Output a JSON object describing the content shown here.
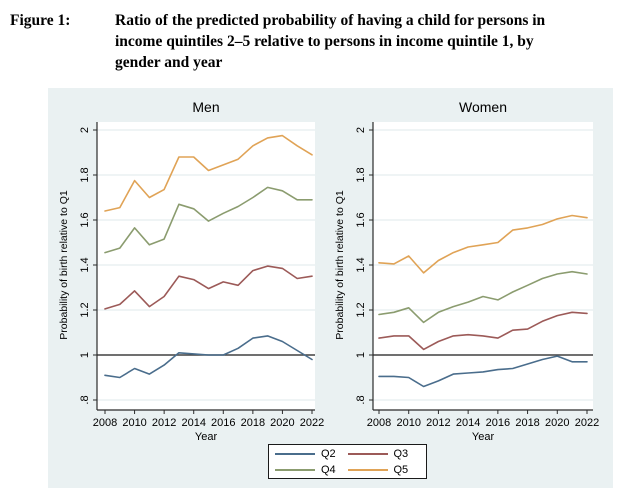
{
  "header": {
    "figure_label": "Figure 1:",
    "title": "Ratio of the predicted probability of having a child for persons in income quintiles 2–5 relative to persons in income quintile 1, by gender and year",
    "title_lines": [
      "Ratio of the predicted probability of having a child for persons in",
      "income quintiles 2–5 relative to persons in income quintile 1, by",
      "gender and year"
    ]
  },
  "figure": {
    "background": "#eaf1f2",
    "plot_background": "#ffffff",
    "gridline_color": "#dfe9eb",
    "axis_color": "#2b2b2b",
    "title_color": "#1c3a6e",
    "reference_line_color": "#404040",
    "y_ticks": {
      "values": [
        0.8,
        1,
        1.2,
        1.4,
        1.6,
        1.8,
        2
      ],
      "labels": [
        ".8",
        "1",
        "1.2",
        "1.4",
        "1.6",
        "1.8",
        "2"
      ]
    },
    "x_ticks": {
      "values": [
        2008,
        2010,
        2012,
        2014,
        2016,
        2018,
        2020,
        2022
      ],
      "labels": [
        "2008",
        "2010",
        "2012",
        "2014",
        "2016",
        "2018",
        "2020",
        "2022"
      ]
    }
  },
  "chart_data": [
    {
      "type": "line",
      "title": "Men",
      "xlabel": "Year",
      "ylabel": "Probability of birth relative to Q1",
      "ylim": [
        0.8,
        2
      ],
      "grid": true,
      "reference_line_y": 1,
      "x": [
        2008,
        2009,
        2010,
        2011,
        2012,
        2013,
        2014,
        2015,
        2016,
        2017,
        2018,
        2019,
        2020,
        2021,
        2022
      ],
      "series": [
        {
          "name": "Q2",
          "color": "#4a6d8c",
          "values": [
            0.91,
            0.9,
            0.94,
            0.915,
            0.955,
            1.01,
            1.005,
            1.0,
            1.0,
            1.03,
            1.075,
            1.085,
            1.06,
            1.02,
            0.98
          ]
        },
        {
          "name": "Q3",
          "color": "#9c5a58",
          "values": [
            1.205,
            1.225,
            1.285,
            1.215,
            1.26,
            1.35,
            1.335,
            1.295,
            1.325,
            1.31,
            1.375,
            1.395,
            1.385,
            1.34,
            1.35
          ]
        },
        {
          "name": "Q4",
          "color": "#8b9c6f",
          "values": [
            1.455,
            1.475,
            1.565,
            1.49,
            1.515,
            1.67,
            1.65,
            1.595,
            1.63,
            1.66,
            1.7,
            1.745,
            1.73,
            1.69,
            1.69
          ]
        },
        {
          "name": "Q5",
          "color": "#e0a356",
          "values": [
            1.64,
            1.655,
            1.775,
            1.7,
            1.735,
            1.88,
            1.88,
            1.82,
            1.845,
            1.87,
            1.93,
            1.965,
            1.975,
            1.93,
            1.89
          ]
        }
      ]
    },
    {
      "type": "line",
      "title": "Women",
      "xlabel": "Year",
      "ylabel": "Probability of birth relative to Q1",
      "ylim": [
        0.8,
        2
      ],
      "grid": true,
      "reference_line_y": 1,
      "x": [
        2008,
        2009,
        2010,
        2011,
        2012,
        2013,
        2014,
        2015,
        2016,
        2017,
        2018,
        2019,
        2020,
        2021,
        2022
      ],
      "series": [
        {
          "name": "Q2",
          "color": "#4a6d8c",
          "values": [
            0.905,
            0.905,
            0.9,
            0.86,
            0.885,
            0.915,
            0.92,
            0.925,
            0.935,
            0.94,
            0.96,
            0.98,
            0.995,
            0.97,
            0.97
          ]
        },
        {
          "name": "Q3",
          "color": "#9c5a58",
          "values": [
            1.075,
            1.085,
            1.085,
            1.025,
            1.06,
            1.085,
            1.09,
            1.085,
            1.075,
            1.11,
            1.115,
            1.15,
            1.175,
            1.19,
            1.185
          ]
        },
        {
          "name": "Q4",
          "color": "#8b9c6f",
          "values": [
            1.18,
            1.19,
            1.21,
            1.145,
            1.19,
            1.215,
            1.235,
            1.26,
            1.245,
            1.28,
            1.31,
            1.34,
            1.36,
            1.37,
            1.36
          ]
        },
        {
          "name": "Q5",
          "color": "#e0a356",
          "values": [
            1.41,
            1.405,
            1.44,
            1.365,
            1.42,
            1.455,
            1.48,
            1.49,
            1.5,
            1.555,
            1.565,
            1.58,
            1.605,
            1.62,
            1.61
          ]
        }
      ]
    }
  ],
  "legend": {
    "entries": [
      {
        "label": "Q2",
        "color": "#4a6d8c"
      },
      {
        "label": "Q3",
        "color": "#9c5a58"
      },
      {
        "label": "Q4",
        "color": "#8b9c6f"
      },
      {
        "label": "Q5",
        "color": "#e0a356"
      }
    ]
  }
}
